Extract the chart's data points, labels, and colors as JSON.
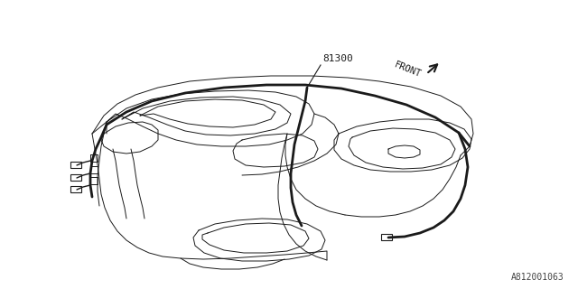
{
  "background_color": "#ffffff",
  "line_color": "#1a1a1a",
  "part_number": "81300",
  "front_label": "FRONT",
  "catalog_number": "A812001063",
  "fig_width": 6.4,
  "fig_height": 3.2,
  "dpi": 100,
  "lw_thin": 0.7,
  "lw_med": 1.0,
  "lw_thick": 2.0
}
